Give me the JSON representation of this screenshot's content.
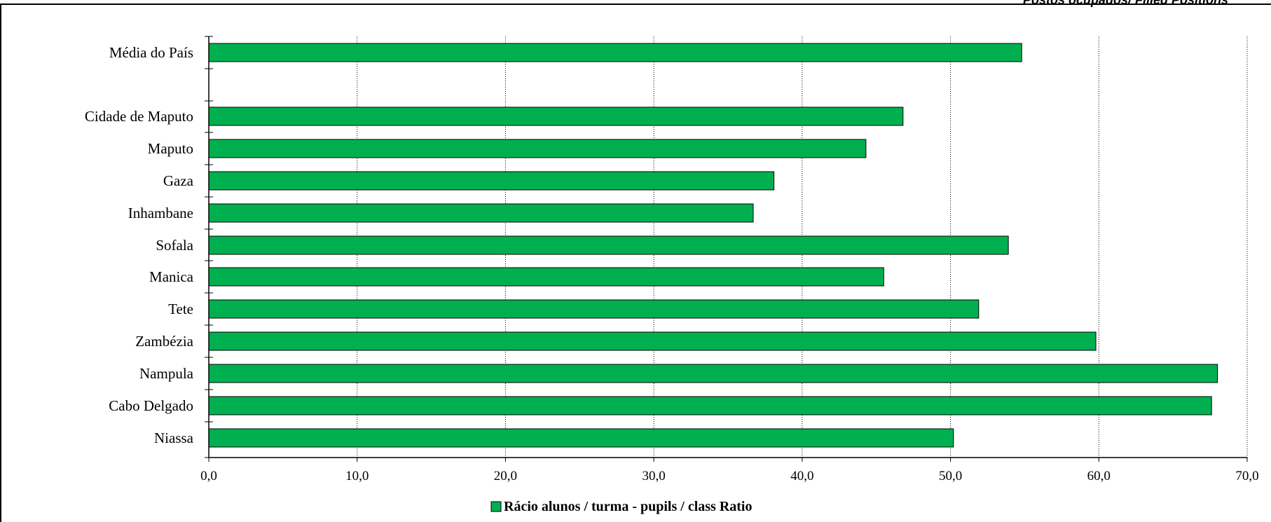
{
  "corner_note": "Postos ocupados/ Filled Positions",
  "chart_data": {
    "type": "bar",
    "orientation": "horizontal",
    "categories": [
      "Média do País",
      "Cidade de Maputo",
      "Maputo",
      "Gaza",
      "Inhambane",
      "Sofala",
      "Manica",
      "Tete",
      "Zambézia",
      "Nampula",
      "Cabo Delgado",
      "Niassa"
    ],
    "series": [
      {
        "name": "Rácio alunos / turma  - pupils / class Ratio",
        "color": "#00b050",
        "values": [
          54.8,
          46.8,
          44.3,
          38.1,
          36.7,
          53.9,
          45.5,
          51.9,
          59.8,
          68.0,
          67.6,
          50.2
        ]
      }
    ],
    "xlim": [
      0,
      70
    ],
    "x_ticks": [
      "0,0",
      "10,0",
      "20,0",
      "30,0",
      "40,0",
      "50,0",
      "60,0",
      "70,0"
    ],
    "grid": "vertical-dotted",
    "legend_position": "bottom-center",
    "xlabel": "",
    "ylabel": "",
    "title": ""
  }
}
